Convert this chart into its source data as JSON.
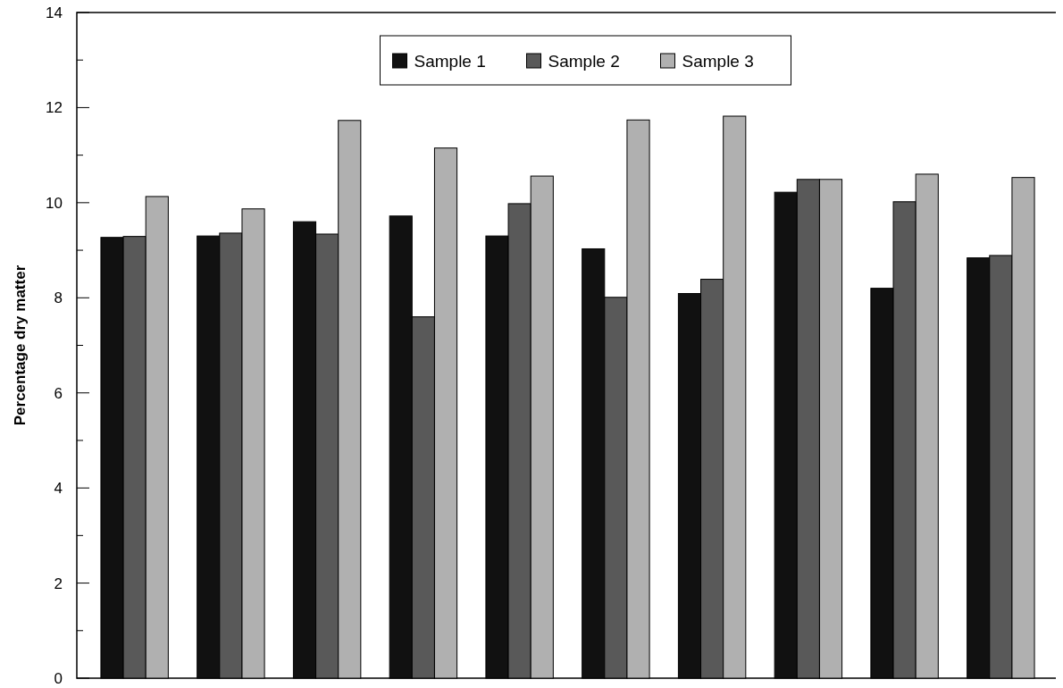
{
  "chart_data": {
    "type": "bar",
    "ylabel": "Percentage dry matter",
    "categories": [
      null,
      null,
      null,
      null,
      null,
      null,
      null,
      null,
      null,
      null
    ],
    "series": [
      {
        "name": "Sample 1",
        "color": "#111111",
        "values": [
          9.27,
          9.3,
          9.6,
          9.72,
          9.3,
          9.03,
          8.09,
          10.22,
          8.2,
          8.84
        ]
      },
      {
        "name": "Sample 2",
        "color": "#595959",
        "values": [
          9.29,
          9.36,
          9.34,
          7.6,
          9.98,
          8.01,
          8.39,
          10.49,
          10.02,
          8.89
        ]
      },
      {
        "name": "Sample 3",
        "color": "#b0b0b0",
        "values": [
          10.13,
          9.87,
          11.73,
          11.15,
          10.56,
          11.74,
          11.82,
          10.49,
          10.6,
          10.53
        ]
      }
    ],
    "ylim": [
      0,
      14
    ],
    "yticks": [
      0,
      {
        "value": 1,
        "label": null
      },
      2,
      {
        "value": 3,
        "label": null
      },
      4,
      {
        "value": 5,
        "label": null
      },
      6,
      {
        "value": 7,
        "label": null
      },
      8,
      {
        "value": 9,
        "label": null
      },
      10,
      {
        "value": 11,
        "label": null
      },
      12,
      {
        "value": 13,
        "label": null
      },
      14
    ],
    "legend": "top",
    "grid": false
  }
}
